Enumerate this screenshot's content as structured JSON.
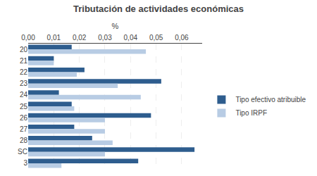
{
  "chart_data": {
    "type": "bar",
    "orientation": "horizontal",
    "title": "Tributación de actividades económicas",
    "xlabel": "%",
    "categories": [
      "20",
      "21",
      "22",
      "23",
      "24",
      "25",
      "26",
      "27",
      "28",
      "SC",
      "3"
    ],
    "series": [
      {
        "name": "Tipo efectivo atribuible",
        "color": "#2E5D8E",
        "values": [
          0.017,
          0.01,
          0.022,
          0.052,
          0.012,
          0.017,
          0.048,
          0.018,
          0.025,
          0.065,
          0.043
        ]
      },
      {
        "name": "Tipo IRPF",
        "color": "#B8CCE4",
        "values": [
          0.046,
          0.01,
          0.019,
          0.035,
          0.044,
          0.018,
          0.03,
          0.03,
          0.033,
          0.03,
          0.013
        ]
      }
    ],
    "xlim": [
      0,
      0.068
    ],
    "xticks": [
      {
        "value": 0.0,
        "label": "0,00"
      },
      {
        "value": 0.01,
        "label": "0,01"
      },
      {
        "value": 0.02,
        "label": "0,02"
      },
      {
        "value": 0.03,
        "label": "0,03"
      },
      {
        "value": 0.04,
        "label": "0,04"
      },
      {
        "value": 0.05,
        "label": "0,05"
      },
      {
        "value": 0.06,
        "label": "0,06"
      }
    ],
    "grid": true,
    "legend": "right"
  }
}
